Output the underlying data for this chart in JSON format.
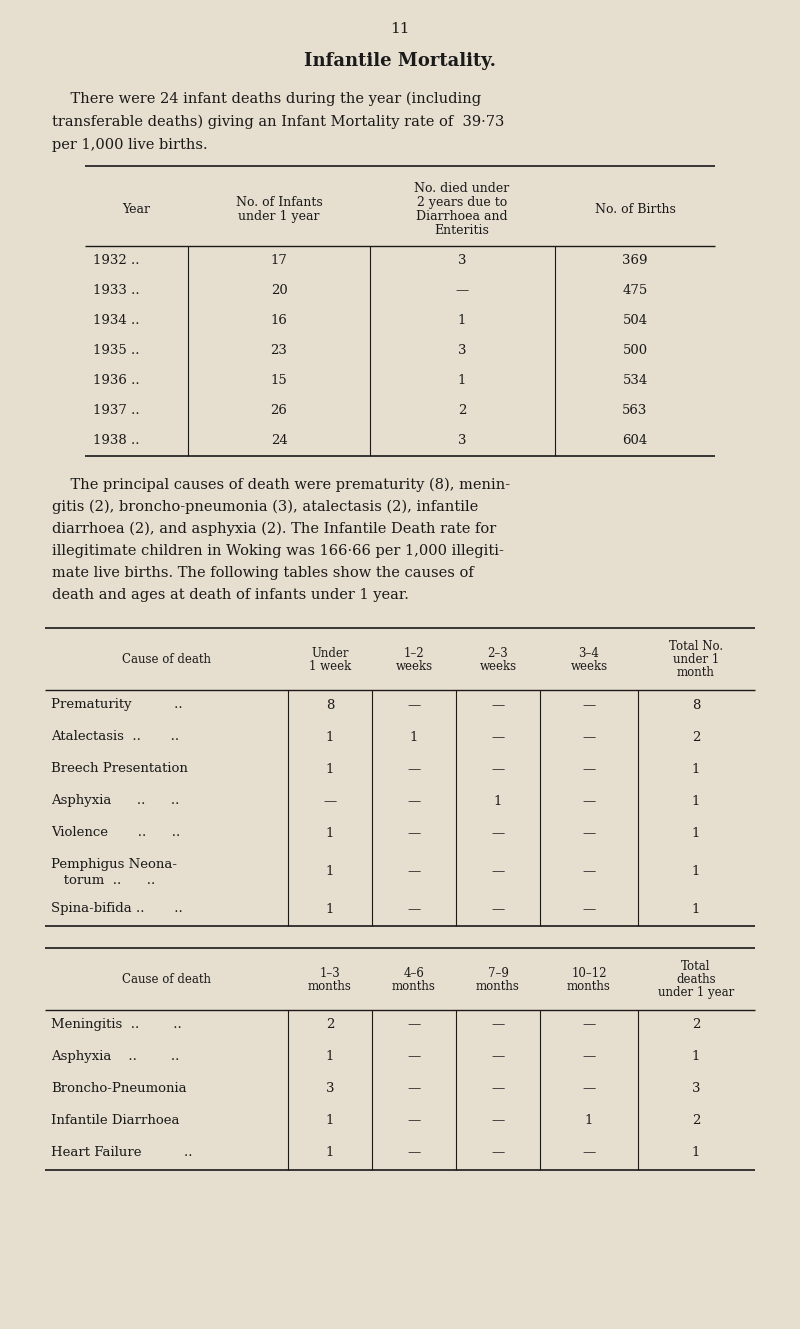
{
  "page_number": "11",
  "title": "Infantile Mortality.",
  "intro_line1": "    There were 24 infant deaths during the year (including",
  "intro_line2": "transferable deaths) giving an Infant Mortality rate of  39·73",
  "intro_line3": "per 1,000 live births.",
  "bg_color": "#e6dece",
  "text_color": "#1a1a1a",
  "table1_col_headers": [
    "Year",
    "No. of Infants\nunder 1 year",
    "No. died under\n2 years due to\nDiarrhoea and\nEnteritis",
    "No. of Births"
  ],
  "table1_rows": [
    [
      "1932 ..",
      "17",
      "3",
      "369"
    ],
    [
      "1933 ..",
      "20",
      "—",
      "475"
    ],
    [
      "1934 ..",
      "16",
      "1",
      "504"
    ],
    [
      "1935 ..",
      "23",
      "3",
      "500"
    ],
    [
      "1936 ..",
      "15",
      "1",
      "534"
    ],
    [
      "1937 ..",
      "26",
      "2",
      "563"
    ],
    [
      "1938 ..",
      "24",
      "3",
      "604"
    ]
  ],
  "middle_lines": [
    "    The principal causes of death were prematurity (8), menin-",
    "gitis (2), broncho-pneumonia (3), atalectasis (2), infantile",
    "diarrhoea (2), and asphyxia (2). The Infantile Death rate for",
    "illegitimate children in Woking was 166·66 per 1,000 illegiti-",
    "mate live births. The following tables show the causes of",
    "death and ages at death of infants under 1 year."
  ],
  "table2_col_headers": [
    "Cause of death",
    "Under\n1 week",
    "1–2\nweeks",
    "2–3\nweeks",
    "3–4\nweeks",
    "Total No.\nunder 1\nmonth"
  ],
  "table2_rows": [
    [
      "Prematurity          ..",
      "8",
      "—",
      "—",
      "—",
      "8"
    ],
    [
      "Atalectasis  ..       ..",
      "1",
      "1",
      "—",
      "—",
      "2"
    ],
    [
      "Breech Presentation",
      "1",
      "—",
      "—",
      "—",
      "1"
    ],
    [
      "Asphyxia      ..      ..",
      "—",
      "—",
      "1",
      "—",
      "1"
    ],
    [
      "Violence       ..      ..",
      "1",
      "—",
      "—",
      "—",
      "1"
    ],
    [
      "Pemphigus Neona-",
      "1",
      "—",
      "—",
      "—",
      "1"
    ],
    [
      "Spina-bifida ..       ..",
      "1",
      "—",
      "—",
      "—",
      "1"
    ]
  ],
  "table2_row_labels_extra": [
    "",
    "",
    "",
    "",
    "",
    "   torum  ..      ..",
    ""
  ],
  "table3_col_headers": [
    "Cause of death",
    "1–3\nmonths",
    "4–6\nmonths",
    "7–9\nmonths",
    "10–12\nmonths",
    "Total\ndeaths\nunder 1 year"
  ],
  "table3_rows": [
    [
      "Meningitis  ..        ..",
      "2",
      "—",
      "—",
      "—",
      "2"
    ],
    [
      "Asphyxia    ..        ..",
      "1",
      "—",
      "—",
      "—",
      "1"
    ],
    [
      "Broncho-Pneumonia",
      "3",
      "—",
      "—",
      "—",
      "3"
    ],
    [
      "Infantile Diarrhoea",
      "1",
      "—",
      "—",
      "1",
      "2"
    ],
    [
      "Heart Failure          ..",
      "1",
      "—",
      "—",
      "—",
      "1"
    ]
  ]
}
